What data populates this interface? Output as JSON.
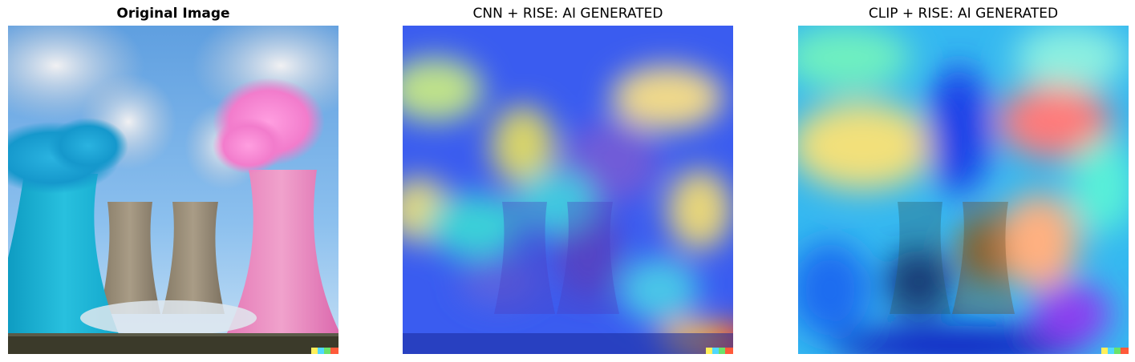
{
  "panels": [
    {
      "title": "Original Image",
      "bold": true,
      "image": "cooling-towers-photo"
    },
    {
      "title": "CNN + RISE: AI GENERATED",
      "bold": false,
      "image": "cnn-rise-saliency-overlay"
    },
    {
      "title": "CLIP + RISE: AI GENERATED",
      "bold": false,
      "image": "clip-rise-saliency-overlay"
    }
  ],
  "colors": {
    "sky": "#7fb4e6",
    "tower_cyan": "#1fb6d6",
    "tower_pink": "#e98bc1",
    "tower_gray": "#9a8e7a",
    "ground": "#3b3a2a",
    "heat_low": "#1a3cff",
    "heat_mid": "#38e0e0",
    "heat_high": "#ffd04a",
    "heat_peak": "#ff3a2a"
  }
}
